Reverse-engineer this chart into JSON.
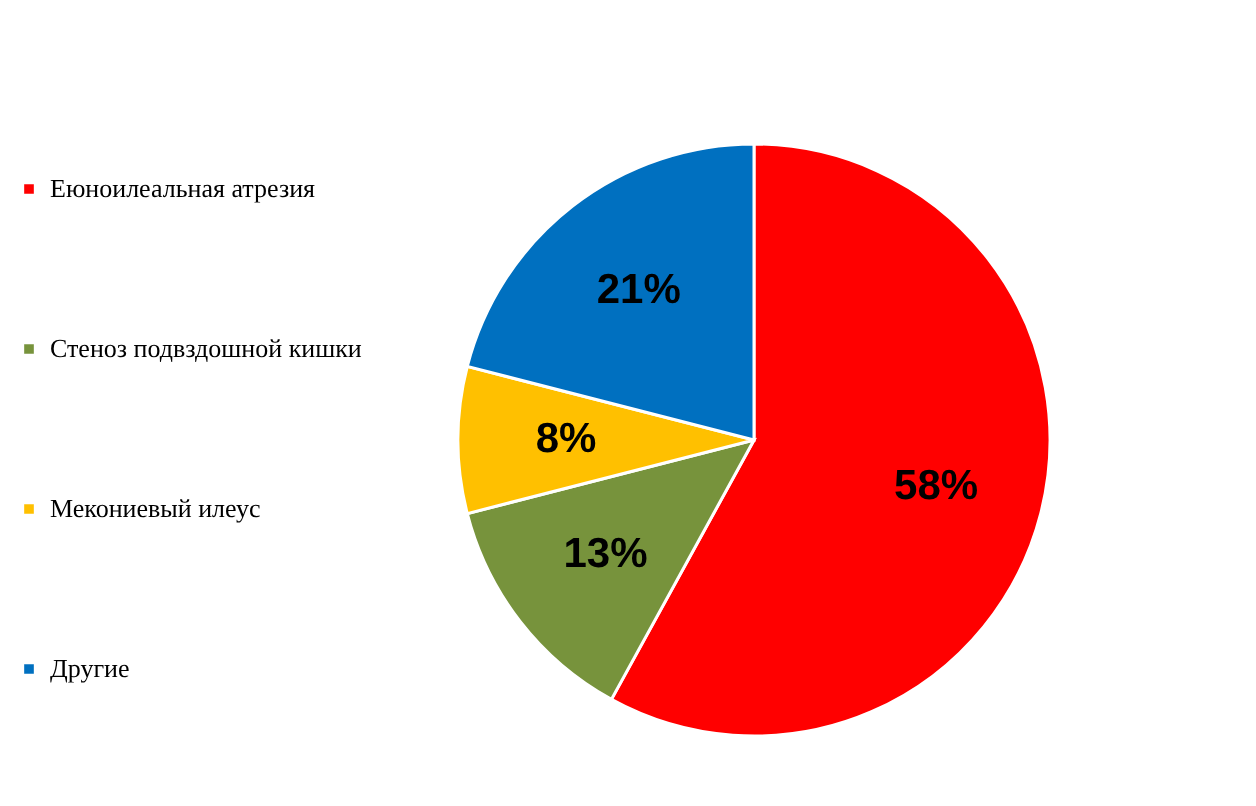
{
  "chart_data": {
    "type": "pie",
    "categories": [
      "Еюноилеальная  атрезия",
      "Стеноз подвздошной кишки",
      "Мекониевый илеус",
      "Другие"
    ],
    "values": [
      58,
      13,
      8,
      21
    ],
    "colors": [
      "#ff0000",
      "#77933c",
      "#ffc000",
      "#0070c0"
    ],
    "value_labels": [
      "58%",
      "13%",
      "8%",
      "21%"
    ],
    "legend": "left"
  }
}
